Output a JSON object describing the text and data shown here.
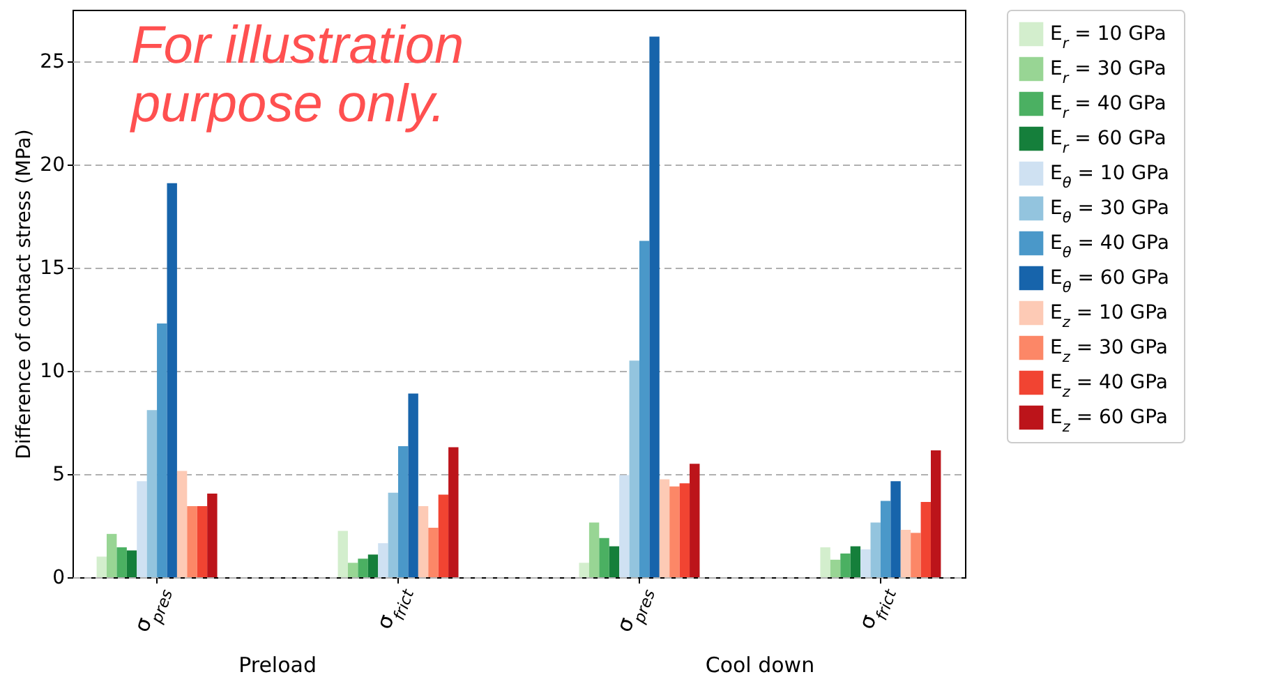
{
  "chart_data": {
    "type": "bar",
    "ylabel": "Difference of contact stress (MPa)",
    "categories": [
      "σ$_{pres}$",
      "σ$_{frict}$",
      "σ$_{pres}$",
      "σ$_{frict}$"
    ],
    "series": [
      {
        "name": "E$_{r}$ = 10 GPa",
        "color": "#d3eecd",
        "values": [
          1.0,
          2.25,
          0.7,
          1.45
        ]
      },
      {
        "name": "E$_{r}$ = 30 GPa",
        "color": "#98d594",
        "values": [
          2.1,
          0.7,
          2.65,
          0.85
        ]
      },
      {
        "name": "E$_{r}$ = 40 GPa",
        "color": "#4bb062",
        "values": [
          1.45,
          0.9,
          1.9,
          1.15
        ]
      },
      {
        "name": "E$_{r}$ = 60 GPa",
        "color": "#157f3b",
        "values": [
          1.3,
          1.1,
          1.5,
          1.5
        ]
      },
      {
        "name": "E$_{θ}$ = 10 GPa",
        "color": "#cfe1f2",
        "values": [
          4.65,
          1.65,
          4.95,
          1.35
        ]
      },
      {
        "name": "E$_{θ}$ = 30 GPa",
        "color": "#93c4de",
        "values": [
          8.1,
          4.1,
          10.5,
          2.65
        ]
      },
      {
        "name": "E$_{θ}$ = 40 GPa",
        "color": "#4a98c9",
        "values": [
          12.3,
          6.35,
          16.3,
          3.7
        ]
      },
      {
        "name": "E$_{θ}$ = 60 GPa",
        "color": "#1764ab",
        "values": [
          19.1,
          8.9,
          26.2,
          4.65
        ]
      },
      {
        "name": "E$_{z}$ = 10 GPa",
        "color": "#fdcab5",
        "values": [
          5.15,
          3.45,
          4.75,
          2.3
        ]
      },
      {
        "name": "E$_{z}$ = 30 GPa",
        "color": "#fc8767",
        "values": [
          3.45,
          2.4,
          4.4,
          2.15
        ]
      },
      {
        "name": "E$_{z}$ = 40 GPa",
        "color": "#f14432",
        "values": [
          3.45,
          4.0,
          4.55,
          3.65
        ]
      },
      {
        "name": "E$_{z}$ = 60 GPa",
        "color": "#bc141a",
        "values": [
          4.05,
          6.3,
          5.5,
          6.15
        ]
      }
    ],
    "ylim": [
      0,
      27.5
    ],
    "yticks": [
      0,
      5,
      10,
      15,
      20,
      25
    ],
    "grid": "y",
    "legend": "right",
    "annotations": [
      "For illustration purpose only.",
      "Preload",
      "Cool down"
    ]
  }
}
